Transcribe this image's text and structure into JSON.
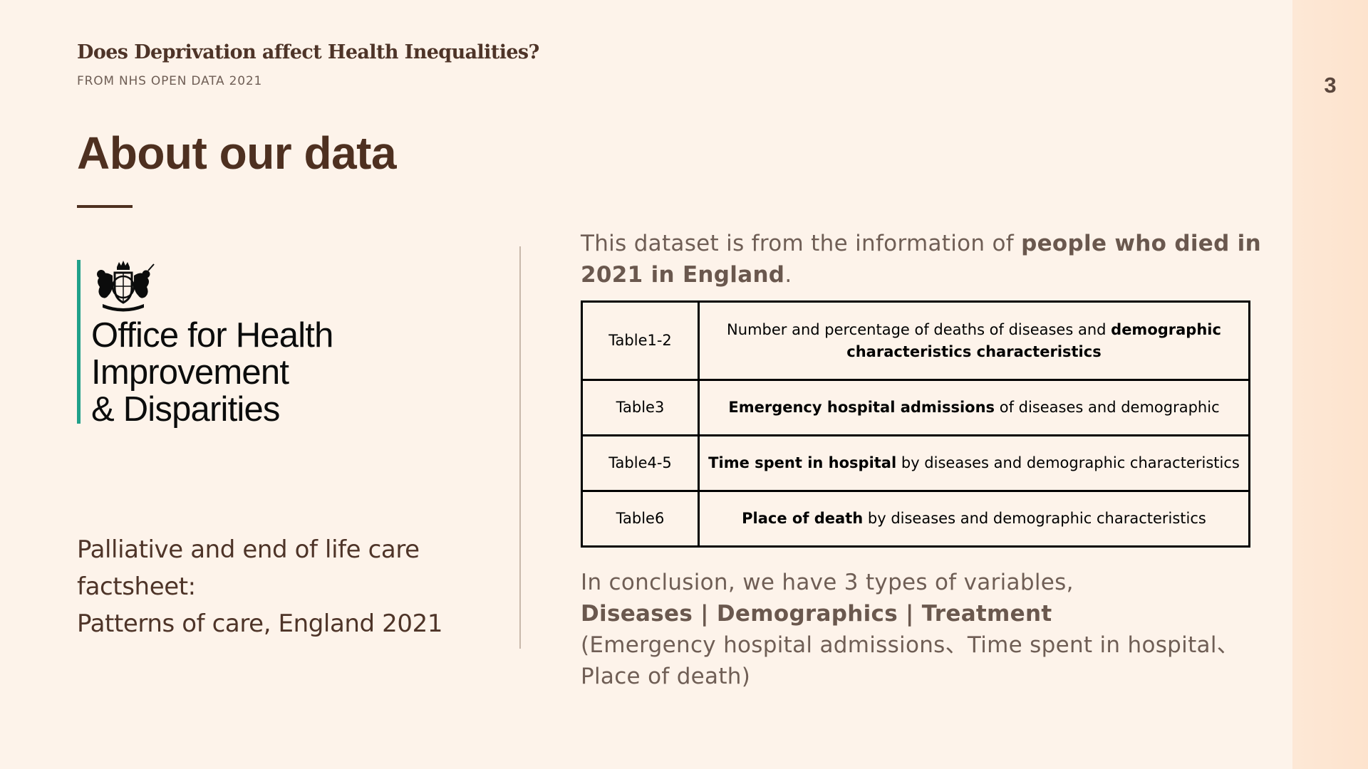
{
  "slide": {
    "page_number": "3"
  },
  "header": {
    "title": "Does Deprivation affect Health Inequalities?",
    "subtitle": "FROM NHS OPEN DATA 2021"
  },
  "main": {
    "title": "About our data"
  },
  "logo": {
    "org_line1": "Office for Health",
    "org_line2": "Improvement",
    "org_line3": "& Disparities",
    "icon": "royal-coat-of-arms"
  },
  "factsheet": {
    "line1": "Palliative and end of life care",
    "line2": "factsheet:",
    "line3": "Patterns of care, England 2021"
  },
  "intro": {
    "prefix": "This dataset is from the information of ",
    "bold": "people who died in 2021 in England",
    "suffix": "."
  },
  "table": {
    "rows": [
      {
        "name": "Table1-2",
        "desc_plain": "Number and percentage of deaths of diseases and ",
        "desc_bold": "demographic characteristics characteristics",
        "desc_after": ""
      },
      {
        "name": "Table3",
        "desc_plain": "",
        "desc_bold": "Emergency hospital admissions",
        "desc_after": " of diseases and demographic"
      },
      {
        "name": "Table4-5",
        "desc_plain": "",
        "desc_bold": "Time spent in hospital",
        "desc_after": " by diseases and demographic characteristics"
      },
      {
        "name": "Table6",
        "desc_plain": "",
        "desc_bold": "Place of death",
        "desc_after": " by diseases and demographic characteristics"
      }
    ]
  },
  "conclusion": {
    "line1": "In conclusion, we have 3 types of variables,",
    "line2": "Diseases | Demographics | Treatment",
    "line3": "(Emergency hospital admissions、Time spent in hospital、",
    "line4": "Place of death)"
  },
  "colors": {
    "background": "#fdf3ea",
    "text_dark": "#4e3020",
    "accent_teal": "#21a08a",
    "side_band": "#fde8d6"
  }
}
